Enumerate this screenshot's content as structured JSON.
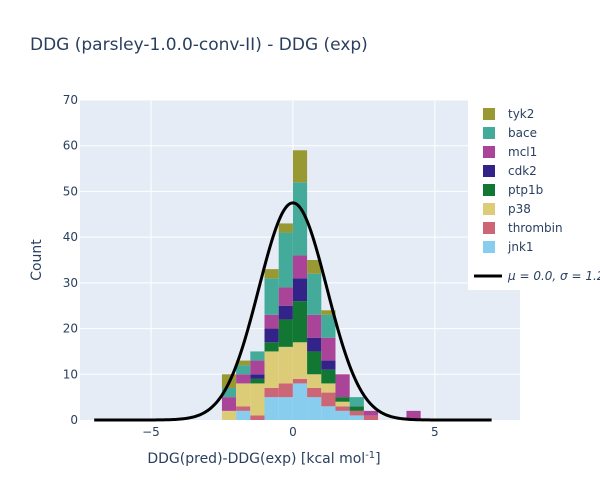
{
  "chart_data": {
    "type": "bar",
    "barmode": "stack",
    "title": "DDG (parsley-1.0.0-conv-II) - DDG (exp)",
    "xlabel": "DDG(pred)-DDG(exp) [kcal mol",
    "xlabel_sup": "-1",
    "xlabel_tail": "]",
    "ylabel": "Count",
    "xlim": [
      -7.5,
      8
    ],
    "ylim": [
      0,
      70
    ],
    "x_ticks": [
      -5,
      0,
      5
    ],
    "x_tick_labels": [
      "−5",
      "0",
      "5"
    ],
    "y_ticks": [
      0,
      10,
      20,
      30,
      40,
      50,
      60,
      70
    ],
    "bin_width": 0.5,
    "bin_centers": [
      -2.25,
      -1.75,
      -1.25,
      -0.75,
      -0.25,
      0.25,
      0.75,
      1.25,
      1.75,
      2.25,
      2.75,
      4.25
    ],
    "series": [
      {
        "name": "jnk1",
        "color": "#88ccee",
        "values": [
          0,
          2,
          0,
          5,
          5,
          8,
          5,
          3,
          2,
          1,
          0,
          0
        ]
      },
      {
        "name": "thrombin",
        "color": "#cc6677",
        "values": [
          0,
          1,
          1,
          2,
          3,
          1,
          2,
          3,
          1,
          1,
          1,
          0
        ]
      },
      {
        "name": "p38",
        "color": "#ddcc77",
        "values": [
          2,
          5,
          7,
          8,
          8,
          8,
          3,
          2,
          1,
          0,
          0,
          0
        ]
      },
      {
        "name": "ptp1b",
        "color": "#117733",
        "values": [
          0,
          0,
          1,
          2,
          6,
          9,
          5,
          3,
          1,
          1,
          0,
          0
        ]
      },
      {
        "name": "cdk2",
        "color": "#332288",
        "values": [
          0,
          0,
          1,
          3,
          3,
          5,
          3,
          2,
          0,
          0,
          0,
          0
        ]
      },
      {
        "name": "mcl1",
        "color": "#aa4499",
        "values": [
          3,
          2,
          3,
          3,
          4,
          5,
          5,
          5,
          5,
          0,
          1,
          2
        ]
      },
      {
        "name": "bace",
        "color": "#44aa99",
        "values": [
          2,
          2,
          2,
          8,
          12,
          16,
          9,
          5,
          0,
          2,
          0,
          0
        ]
      },
      {
        "name": "tyk2",
        "color": "#999933",
        "values": [
          3,
          1,
          0,
          2,
          2,
          7,
          3,
          1,
          0,
          0,
          0,
          0
        ]
      }
    ],
    "fit_curve": {
      "label": "μ = 0.0, σ = 1.2",
      "mu": 0.0,
      "sigma": 1.2,
      "peak": 47.5,
      "x_range": [
        -7,
        7
      ],
      "color": "#000000"
    },
    "legend_position": "right",
    "grid": true
  }
}
